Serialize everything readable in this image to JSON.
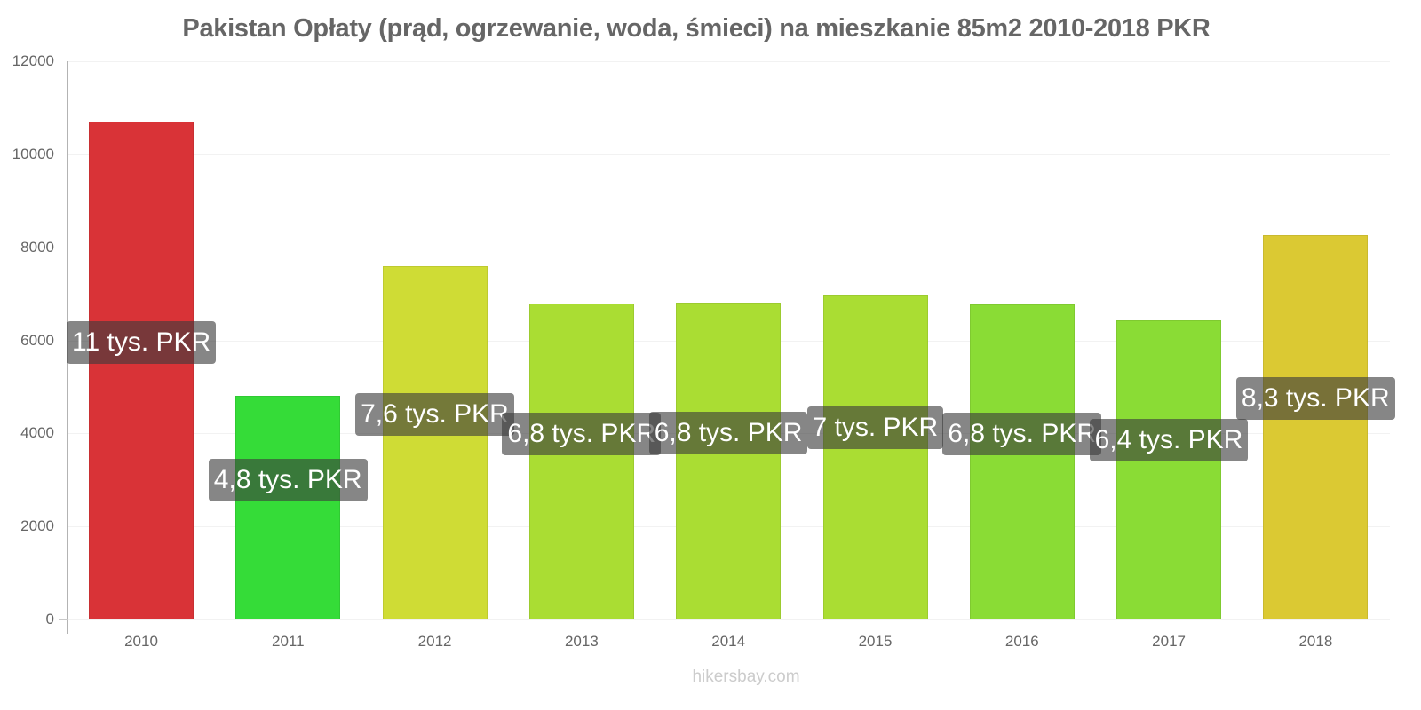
{
  "chart_data": {
    "type": "bar",
    "title": "Pakistan Opłaty (prąd, ogrzewanie, woda, śmieci) na mieszkanie 85m2 2010-2018 PKR",
    "xlabel": "",
    "ylabel": "",
    "ylim": [
      0,
      12000
    ],
    "yticks": [
      "0",
      "2000",
      "4000",
      "6000",
      "8000",
      "10000",
      "12000"
    ],
    "grid": true,
    "legend": "none",
    "categories": [
      "2010",
      "2011",
      "2012",
      "2013",
      "2014",
      "2015",
      "2016",
      "2017",
      "2018"
    ],
    "values": [
      10700,
      4810,
      7600,
      6790,
      6810,
      6990,
      6780,
      6430,
      8260
    ],
    "data_labels": [
      "11 tys. PKR",
      "4,8 tys. PKR",
      "7,6 tys. PKR",
      "6,8 tys. PKR",
      "6,8 tys. PKR",
      "7 tys. PKR",
      "6,8 tys. PKR",
      "6,4 tys. PKR",
      "8,3 tys. PKR"
    ],
    "colors": [
      "#d93337",
      "#35dc38",
      "#cfdc35",
      "#aadd33",
      "#aadd33",
      "#aadd33",
      "#8adc35",
      "#8adc35",
      "#dbc933"
    ]
  },
  "footer": {
    "watermark": "hikersbay.com"
  }
}
